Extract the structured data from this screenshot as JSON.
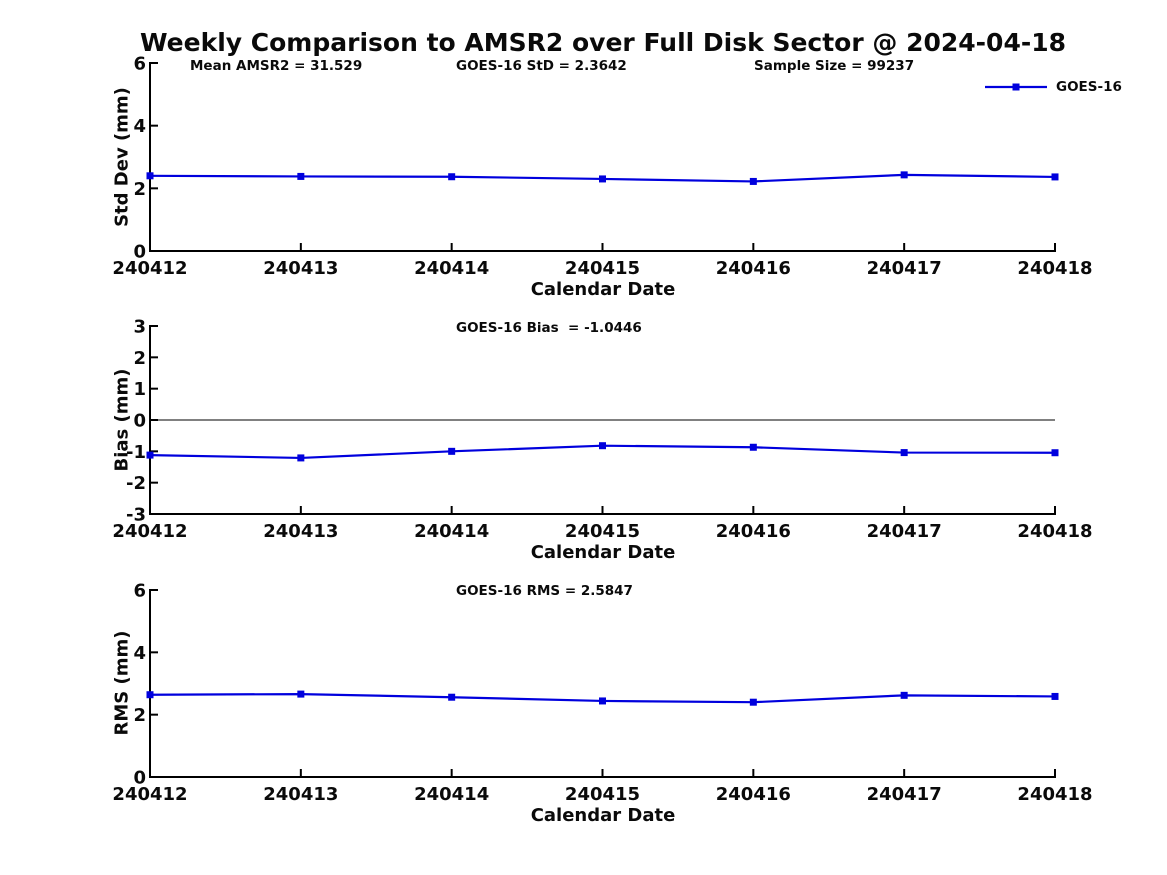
{
  "title": "Weekly Comparison to AMSR2 over Full Disk Sector @ 2024-04-18",
  "legend": {
    "label": "GOES-16",
    "position": "top-right"
  },
  "colors": {
    "line": "#0000dd",
    "axis": "#000000",
    "zero_line": "#808080",
    "text": "#0a0a0a"
  },
  "chart_data": [
    {
      "type": "line",
      "categories": [
        "240412",
        "240413",
        "240414",
        "240415",
        "240416",
        "240417",
        "240418"
      ],
      "series": [
        {
          "name": "GOES-16",
          "values": [
            2.4,
            2.38,
            2.37,
            2.3,
            2.22,
            2.43,
            2.3642
          ]
        }
      ],
      "title": "",
      "xlabel": "Calendar Date",
      "ylabel": "Std Dev (mm)",
      "ylim": [
        0,
        6
      ],
      "yticks": [
        0,
        2,
        4,
        6
      ],
      "grid": false,
      "marker": "square",
      "annotations": [
        "Mean AMSR2 = 31.529",
        "GOES-16 StD = 2.3642",
        "Sample Size = 99237"
      ]
    },
    {
      "type": "line",
      "categories": [
        "240412",
        "240413",
        "240414",
        "240415",
        "240416",
        "240417",
        "240418"
      ],
      "series": [
        {
          "name": "GOES-16",
          "values": [
            -1.12,
            -1.21,
            -1.0,
            -0.82,
            -0.87,
            -1.04,
            -1.0446
          ]
        }
      ],
      "title": "",
      "xlabel": "Calendar Date",
      "ylabel": "Bias (mm)",
      "ylim": [
        -3,
        3
      ],
      "yticks": [
        -3,
        -2,
        -1,
        0,
        1,
        2,
        3
      ],
      "grid": false,
      "marker": "square",
      "ref_line": 0,
      "annotations": [
        "GOES-16 Bias  = -1.0446"
      ]
    },
    {
      "type": "line",
      "categories": [
        "240412",
        "240413",
        "240414",
        "240415",
        "240416",
        "240417",
        "240418"
      ],
      "series": [
        {
          "name": "GOES-16",
          "values": [
            2.64,
            2.66,
            2.56,
            2.44,
            2.4,
            2.62,
            2.5847
          ]
        }
      ],
      "title": "",
      "xlabel": "Calendar Date",
      "ylabel": "RMS (mm)",
      "ylim": [
        0,
        6
      ],
      "yticks": [
        0,
        2,
        4,
        6
      ],
      "grid": false,
      "marker": "square",
      "annotations": [
        "GOES-16 RMS = 2.5847"
      ]
    }
  ]
}
